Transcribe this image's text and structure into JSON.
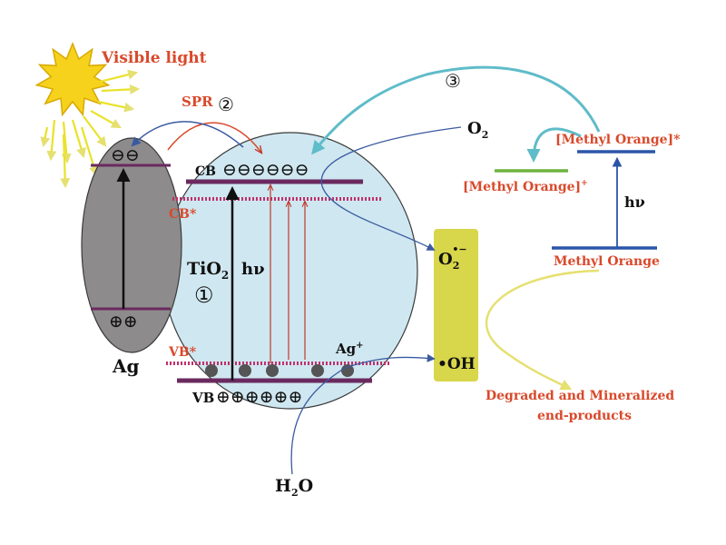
{
  "colors": {
    "sun": "#f6d21c",
    "sun_stroke": "#d8a900",
    "ray": "#e9e22a",
    "ag_body": "#8e8b8c",
    "tio2_body": "#cfe7f0",
    "band": "#6a2a5f",
    "band_dashed": "#c0306c",
    "radical_box": "#d8d64a",
    "label_red": "#d9492b",
    "arrow_cyan": "#5fbcc9",
    "arrow_blue": "#3a5aa0",
    "level_blue": "#2a55a8",
    "level_green": "#6db33f",
    "arrow_yellow": "#e5e070",
    "trap_dot": "#555555"
  },
  "light": {
    "label": "Visible light"
  },
  "spr": {
    "label": "SPR",
    "step": "②"
  },
  "ag": {
    "label": "Ag",
    "holes": "⊕⊕",
    "electrons": "⊖⊖"
  },
  "tio2": {
    "cb": "CB",
    "cb_star": "CB*",
    "vb": "VB",
    "vb_star": "VB*",
    "name": "TiO",
    "name_sub": "2",
    "hv": "hν",
    "step": "①",
    "electrons": "⊖⊖⊖⊖⊖⊖",
    "holes": "⊕⊕⊕⊕⊕⊕",
    "ag_ion": "Ag",
    "ag_ion_sup": "+"
  },
  "reactants": {
    "o2": "O",
    "o2_sub": "2",
    "h2o_h": "H",
    "h2o_sub": "2",
    "h2o_o": "O"
  },
  "radicals": {
    "superoxide": "O",
    "superoxide_sub": "2",
    "superoxide_sup": "•−",
    "hydroxyl": "•OH"
  },
  "dye": {
    "step": "③",
    "excited": "[Methyl Orange]*",
    "cation": "[Methyl Orange]",
    "cation_sup": "+",
    "ground": "Methyl Orange",
    "hv": "hν"
  },
  "products": {
    "line1": "Degraded and Mineralized",
    "line2": "end-products"
  }
}
